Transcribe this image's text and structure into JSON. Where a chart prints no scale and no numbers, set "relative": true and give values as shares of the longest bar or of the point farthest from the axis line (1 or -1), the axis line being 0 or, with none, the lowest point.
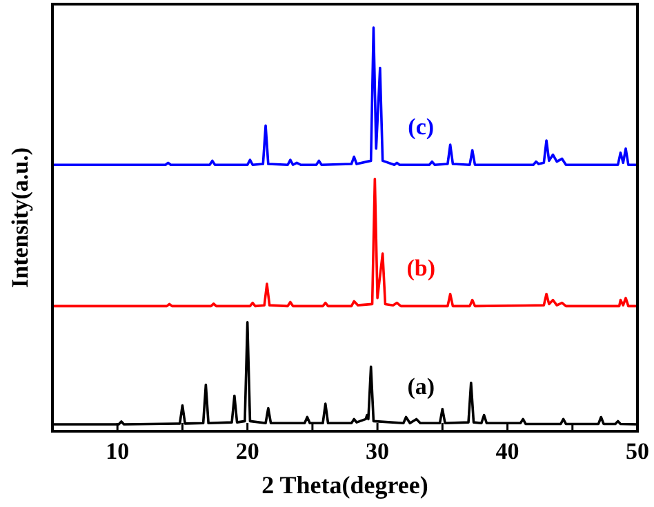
{
  "chart_data": {
    "type": "line",
    "relative": true,
    "xlabel": "2 Theta(degree)",
    "ylabel": "Intensity(a.u.)",
    "xlim": [
      5,
      50
    ],
    "xticks": [
      10,
      {
        "value": 15,
        "label": null
      },
      20,
      {
        "value": 25,
        "label": null
      },
      30,
      {
        "value": 35,
        "label": null
      },
      40,
      {
        "value": 45,
        "label": null
      },
      50
    ],
    "tick_labels": "x",
    "legend": false,
    "grid": false,
    "marker": "none",
    "line_style": "solid",
    "series": [
      {
        "name": "(a)",
        "color": "#000000",
        "x": [
          5,
          10.1,
          10.3,
          10.5,
          14.8,
          15.0,
          15.2,
          16.6,
          16.8,
          17.0,
          18.8,
          19.0,
          19.2,
          19.8,
          20.0,
          20.2,
          21.4,
          21.6,
          21.8,
          24.4,
          24.6,
          24.8,
          25.8,
          26.0,
          26.2,
          28.0,
          28.2,
          28.4,
          29.1,
          29.2,
          29.3,
          29.5,
          29.7,
          32.0,
          32.2,
          32.5,
          33.0,
          33.3,
          34.8,
          35.0,
          35.2,
          37.0,
          37.2,
          37.4,
          38.0,
          38.2,
          38.4,
          41.0,
          41.2,
          41.4,
          44.1,
          44.3,
          44.5,
          47.0,
          47.2,
          47.4,
          48.3,
          48.5,
          48.7,
          50
        ],
        "values": [
          0.017,
          0.017,
          0.024,
          0.017,
          0.019,
          0.064,
          0.019,
          0.02,
          0.115,
          0.02,
          0.022,
          0.088,
          0.022,
          0.025,
          0.27,
          0.025,
          0.02,
          0.057,
          0.02,
          0.02,
          0.035,
          0.02,
          0.02,
          0.068,
          0.02,
          0.02,
          0.03,
          0.022,
          0.03,
          0.04,
          0.03,
          0.16,
          0.025,
          0.02,
          0.035,
          0.02,
          0.03,
          0.02,
          0.02,
          0.055,
          0.02,
          0.022,
          0.12,
          0.022,
          0.02,
          0.04,
          0.02,
          0.02,
          0.03,
          0.018,
          0.018,
          0.03,
          0.018,
          0.018,
          0.035,
          0.018,
          0.018,
          0.025,
          0.018,
          0.017
        ]
      },
      {
        "name": "(b)",
        "color": "#ff0000",
        "x": [
          5,
          13.8,
          14.0,
          14.2,
          17.2,
          17.4,
          17.6,
          20.2,
          20.4,
          20.6,
          21.3,
          21.5,
          21.7,
          23.1,
          23.3,
          23.5,
          25.8,
          26.0,
          26.2,
          28.0,
          28.2,
          28.5,
          29.6,
          29.8,
          30.0,
          30.4,
          30.6,
          31.2,
          31.5,
          31.8,
          35.4,
          35.6,
          35.8,
          37.1,
          37.3,
          37.5,
          42.8,
          43.0,
          43.2,
          43.5,
          43.8,
          44.2,
          44.5,
          48.6,
          48.7,
          48.9,
          49.1,
          49.3,
          50
        ],
        "values": [
          0.31,
          0.31,
          0.315,
          0.31,
          0.31,
          0.316,
          0.31,
          0.31,
          0.318,
          0.31,
          0.312,
          0.365,
          0.312,
          0.31,
          0.32,
          0.31,
          0.31,
          0.318,
          0.31,
          0.31,
          0.322,
          0.312,
          0.315,
          0.625,
          0.33,
          0.44,
          0.315,
          0.312,
          0.318,
          0.31,
          0.31,
          0.34,
          0.31,
          0.31,
          0.325,
          0.31,
          0.312,
          0.34,
          0.315,
          0.325,
          0.312,
          0.318,
          0.31,
          0.31,
          0.325,
          0.312,
          0.33,
          0.31,
          0.31
        ]
      },
      {
        "name": "(c)",
        "color": "#0000ff",
        "x": [
          5,
          13.7,
          13.9,
          14.1,
          17.1,
          17.3,
          17.5,
          20.0,
          20.2,
          20.4,
          21.2,
          21.4,
          21.6,
          23.1,
          23.3,
          23.5,
          23.8,
          24.1,
          25.3,
          25.5,
          25.7,
          28.0,
          28.2,
          28.4,
          29.5,
          29.7,
          29.9,
          30.2,
          30.4,
          31.3,
          31.5,
          31.7,
          34.0,
          34.2,
          34.4,
          35.4,
          35.6,
          35.8,
          37.1,
          37.3,
          37.5,
          42.0,
          42.2,
          42.4,
          42.8,
          43.0,
          43.2,
          43.5,
          43.8,
          44.2,
          44.5,
          48.5,
          48.7,
          48.9,
          49.1,
          49.3,
          50
        ],
        "values": [
          0.66,
          0.66,
          0.665,
          0.66,
          0.66,
          0.67,
          0.66,
          0.66,
          0.672,
          0.66,
          0.662,
          0.757,
          0.662,
          0.66,
          0.672,
          0.66,
          0.665,
          0.66,
          0.66,
          0.67,
          0.66,
          0.662,
          0.68,
          0.662,
          0.67,
          1.0,
          0.7,
          0.9,
          0.67,
          0.66,
          0.665,
          0.66,
          0.66,
          0.668,
          0.66,
          0.662,
          0.71,
          0.662,
          0.66,
          0.696,
          0.66,
          0.66,
          0.668,
          0.662,
          0.665,
          0.72,
          0.67,
          0.685,
          0.668,
          0.675,
          0.66,
          0.66,
          0.69,
          0.665,
          0.7,
          0.66,
          0.66
        ]
      }
    ]
  }
}
